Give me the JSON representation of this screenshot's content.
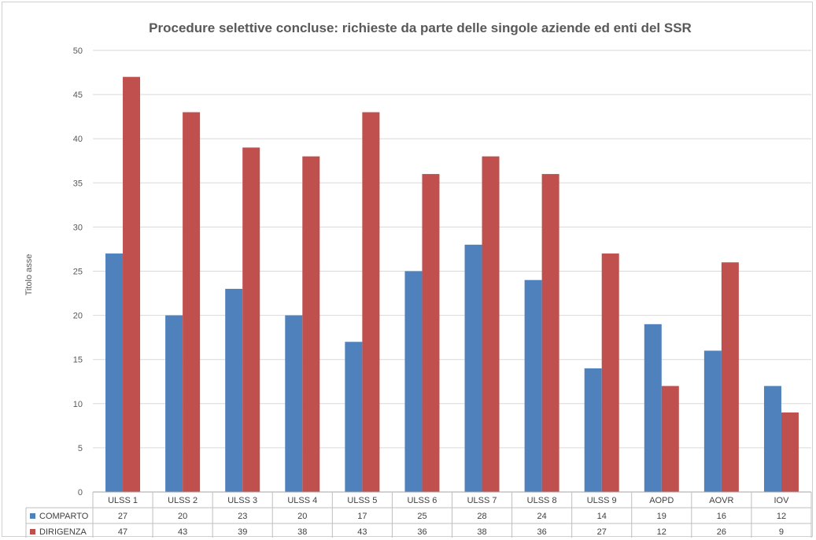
{
  "chart_data": {
    "type": "bar",
    "title": "Procedure selettive concluse: richieste da parte delle singole aziende ed enti del SSR",
    "ylabel": "Titolo asse",
    "xlabel": "",
    "ylim": [
      0,
      50
    ],
    "yticks": [
      0,
      5,
      10,
      15,
      20,
      25,
      30,
      35,
      40,
      45,
      50
    ],
    "grid": true,
    "legend": "data-table",
    "categories": [
      "ULSS 1",
      "ULSS 2",
      "ULSS 3",
      "ULSS 4",
      "ULSS 5",
      "ULSS 6",
      "ULSS 7",
      "ULSS 8",
      "ULSS 9",
      "AOPD",
      "AOVR",
      "IOV"
    ],
    "series": [
      {
        "name": "COMPARTO",
        "color": "#4f81bd",
        "values": [
          27,
          20,
          23,
          20,
          17,
          25,
          28,
          24,
          14,
          19,
          16,
          12
        ]
      },
      {
        "name": "DIRIGENZA",
        "color": "#c0504d",
        "values": [
          47,
          43,
          39,
          38,
          43,
          36,
          38,
          36,
          27,
          12,
          26,
          9
        ]
      }
    ]
  }
}
